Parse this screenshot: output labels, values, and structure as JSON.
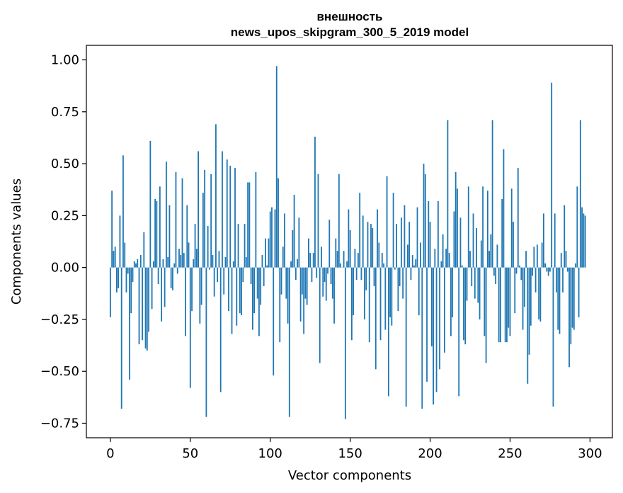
{
  "chart_data": {
    "type": "bar",
    "title": "внешность",
    "subtitle": "news_upos_skipgram_300_5_2019 model",
    "xlabel": "Vector components",
    "ylabel": "Components values",
    "xlim": [
      -15,
      314
    ],
    "ylim": [
      -0.82,
      1.07
    ],
    "xticks": [
      0,
      50,
      100,
      150,
      200,
      250,
      300
    ],
    "yticks": [
      -0.75,
      -0.5,
      -0.25,
      0.0,
      0.25,
      0.5,
      0.75,
      1.0
    ],
    "ytick_labels": [
      "−0.75",
      "−0.50",
      "−0.25",
      "0.00",
      "0.25",
      "0.50",
      "0.75",
      "1.00"
    ],
    "xtick_labels": [
      "0",
      "50",
      "100",
      "150",
      "200",
      "250",
      "300"
    ],
    "grid": false,
    "bar_color": "#1f77b4",
    "values": [
      -0.24,
      0.37,
      0.08,
      0.1,
      -0.12,
      -0.1,
      0.25,
      -0.68,
      0.54,
      0.12,
      -0.12,
      -0.03,
      -0.54,
      -0.22,
      -0.07,
      0.03,
      0.02,
      0.04,
      -0.37,
      0.06,
      -0.35,
      0.17,
      -0.39,
      -0.4,
      -0.31,
      0.61,
      -0.2,
      0.03,
      0.33,
      0.32,
      -0.08,
      0.39,
      -0.26,
      0.04,
      -0.19,
      0.51,
      0.05,
      0.3,
      -0.1,
      -0.11,
      0.02,
      0.46,
      -0.03,
      0.09,
      0.06,
      0.43,
      0.07,
      -0.33,
      0.3,
      0.12,
      -0.58,
      -0.21,
      0.04,
      0.21,
      0.09,
      0.56,
      -0.27,
      -0.18,
      0.36,
      0.47,
      -0.72,
      0.2,
      -0.01,
      0.45,
      0.06,
      -0.14,
      0.69,
      -0.07,
      0.08,
      -0.6,
      0.56,
      -0.13,
      0.05,
      0.52,
      -0.21,
      0.49,
      -0.32,
      0.03,
      0.48,
      -0.28,
      0.21,
      -0.22,
      -0.23,
      -0.07,
      0.21,
      0.05,
      0.41,
      0.41,
      -0.08,
      -0.3,
      -0.22,
      0.46,
      -0.15,
      -0.33,
      -0.18,
      0.06,
      -0.09,
      0.14,
      0.01,
      0.14,
      0.27,
      0.29,
      -0.52,
      0.28,
      0.97,
      0.43,
      -0.36,
      -0.13,
      0.1,
      0.26,
      -0.15,
      -0.27,
      -0.72,
      0.03,
      0.18,
      0.35,
      -0.06,
      0.04,
      0.24,
      -0.26,
      -0.13,
      -0.32,
      -0.15,
      -0.18,
      0.14,
      0.07,
      -0.07,
      0.07,
      0.63,
      -0.05,
      0.45,
      -0.46,
      0.1,
      -0.14,
      -0.07,
      -0.16,
      -0.03,
      0.23,
      -0.08,
      -0.15,
      -0.27,
      0.14,
      0.08,
      0.45,
      0.02,
      0.0,
      0.08,
      -0.73,
      0.03,
      0.28,
      0.18,
      -0.35,
      -0.23,
      0.09,
      -0.06,
      0.07,
      0.36,
      -0.06,
      0.25,
      -0.25,
      -0.11,
      0.22,
      -0.36,
      0.21,
      0.19,
      -0.09,
      -0.49,
      0.28,
      0.12,
      -0.35,
      0.07,
      0.02,
      -0.3,
      0.44,
      -0.62,
      -0.24,
      -0.28,
      0.36,
      -0.01,
      0.21,
      -0.21,
      -0.09,
      0.24,
      -0.15,
      0.3,
      -0.67,
      0.11,
      0.22,
      -0.06,
      0.06,
      0.01,
      0.04,
      0.29,
      -0.23,
      0.12,
      -0.68,
      0.5,
      0.45,
      -0.55,
      0.32,
      0.22,
      -0.38,
      -0.66,
      0.09,
      -0.6,
      0.32,
      -0.49,
      0.03,
      0.16,
      -0.41,
      0.09,
      0.71,
      0.07,
      -0.33,
      -0.24,
      0.27,
      0.46,
      0.38,
      -0.62,
      0.24,
      0.01,
      -0.35,
      -0.37,
      -0.16,
      0.39,
      0.08,
      -0.09,
      0.26,
      -0.15,
      0.19,
      -0.17,
      -0.25,
      0.13,
      0.39,
      -0.33,
      -0.46,
      0.37,
      0.08,
      0.16,
      0.71,
      -0.04,
      -0.08,
      0.11,
      -0.36,
      -0.36,
      0.33,
      0.57,
      -0.36,
      -0.36,
      -0.29,
      -0.33,
      0.38,
      0.22,
      -0.22,
      -0.03,
      0.48,
      0.01,
      -0.06,
      -0.3,
      -0.19,
      0.08,
      -0.56,
      -0.42,
      -0.28,
      -0.04,
      0.1,
      -0.12,
      0.11,
      -0.25,
      -0.26,
      0.12,
      0.26,
      0.02,
      -0.02,
      -0.04,
      -0.02,
      0.89,
      -0.67,
      0.26,
      -0.12,
      -0.3,
      -0.32,
      0.07,
      -0.12,
      0.3,
      0.08,
      -0.02,
      -0.48,
      -0.37,
      -0.29,
      -0.3,
      0.02,
      0.39,
      -0.24,
      0.71,
      0.29,
      0.26,
      0.25
    ]
  }
}
